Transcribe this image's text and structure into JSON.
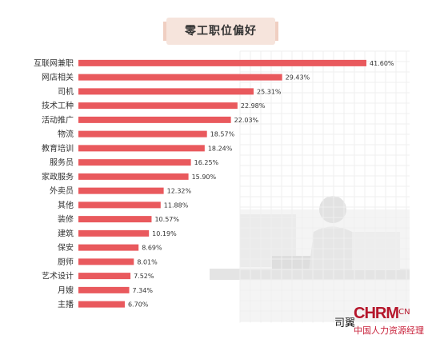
{
  "chart_data": {
    "type": "bar",
    "orientation": "horizontal",
    "title": "零工职位偏好",
    "categories": [
      "互联网兼职",
      "网店相关",
      "司机",
      "技术工种",
      "活动推广",
      "物流",
      "教育培训",
      "服务员",
      "家政服务",
      "外卖员",
      "其他",
      "装修",
      "建筑",
      "保安",
      "厨师",
      "艺术设计",
      "月嫂",
      "主播"
    ],
    "values": [
      41.6,
      29.43,
      25.31,
      22.98,
      22.03,
      18.57,
      18.24,
      16.25,
      15.9,
      12.32,
      11.88,
      10.57,
      10.19,
      8.69,
      8.01,
      7.52,
      7.34,
      6.7
    ],
    "value_labels": [
      "41.60%",
      "29.43%",
      "25.31%",
      "22.98%",
      "22.03%",
      "18.57%",
      "18.24%",
      "16.25%",
      "15.90%",
      "12.32%",
      "11.88%",
      "10.57%",
      "10.19%",
      "8.69%",
      "8.01%",
      "7.52%",
      "7.34%",
      "6.70%"
    ],
    "xlim": [
      0,
      41.6
    ],
    "grid": true,
    "bar_color": "#e9595d"
  },
  "watermark": {
    "logo": "CHRM",
    "domain": ".CN",
    "subtitle": "中国人力资源经理",
    "mark": "司翼"
  }
}
